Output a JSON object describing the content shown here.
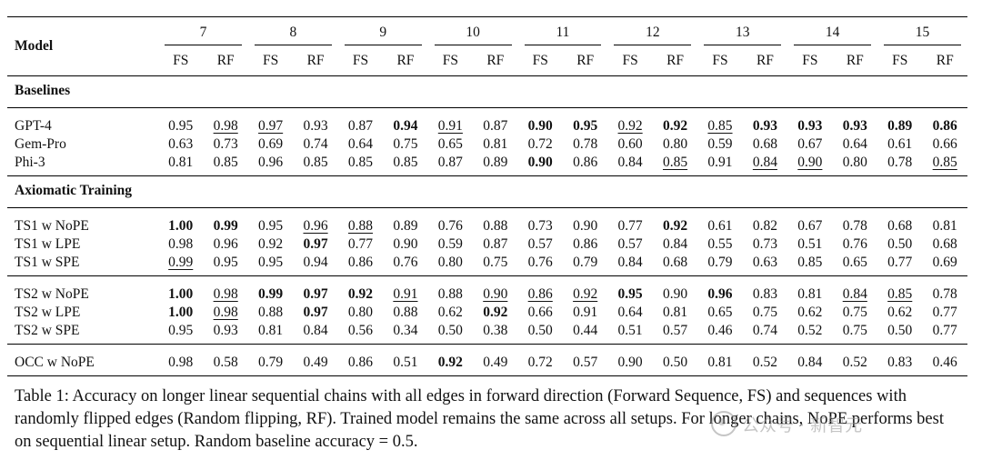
{
  "table": {
    "model_header": "Model",
    "lengths": [
      "7",
      "8",
      "9",
      "10",
      "11",
      "12",
      "13",
      "14",
      "15"
    ],
    "sub_headers": [
      "FS",
      "RF"
    ],
    "sections": [
      {
        "title": "Baselines",
        "rows": [
          {
            "model": "GPT-4",
            "values": [
              {
                "text": "0.95"
              },
              {
                "text": "0.98",
                "underline": true
              },
              {
                "text": "0.97",
                "underline": true
              },
              {
                "text": "0.93"
              },
              {
                "text": "0.87"
              },
              {
                "text": "0.94",
                "bold": true
              },
              {
                "text": "0.91",
                "underline": true
              },
              {
                "text": "0.87"
              },
              {
                "text": "0.90",
                "bold": true
              },
              {
                "text": "0.95",
                "bold": true
              },
              {
                "text": "0.92",
                "underline": true
              },
              {
                "text": "0.92",
                "bold": true
              },
              {
                "text": "0.85",
                "underline": true
              },
              {
                "text": "0.93",
                "bold": true
              },
              {
                "text": "0.93",
                "bold": true
              },
              {
                "text": "0.93",
                "bold": true
              },
              {
                "text": "0.89",
                "bold": true
              },
              {
                "text": "0.86",
                "bold": true
              }
            ]
          },
          {
            "model": "Gem-Pro",
            "values": [
              {
                "text": "0.63"
              },
              {
                "text": "0.73"
              },
              {
                "text": "0.69"
              },
              {
                "text": "0.74"
              },
              {
                "text": "0.64"
              },
              {
                "text": "0.75"
              },
              {
                "text": "0.65"
              },
              {
                "text": "0.81"
              },
              {
                "text": "0.72"
              },
              {
                "text": "0.78"
              },
              {
                "text": "0.60"
              },
              {
                "text": "0.80"
              },
              {
                "text": "0.59"
              },
              {
                "text": "0.68"
              },
              {
                "text": "0.67"
              },
              {
                "text": "0.64"
              },
              {
                "text": "0.61"
              },
              {
                "text": "0.66"
              }
            ]
          },
          {
            "model": "Phi-3",
            "values": [
              {
                "text": "0.81"
              },
              {
                "text": "0.85"
              },
              {
                "text": "0.96"
              },
              {
                "text": "0.85"
              },
              {
                "text": "0.85"
              },
              {
                "text": "0.85"
              },
              {
                "text": "0.87"
              },
              {
                "text": "0.89"
              },
              {
                "text": "0.90",
                "bold": true
              },
              {
                "text": "0.86"
              },
              {
                "text": "0.84"
              },
              {
                "text": "0.85",
                "underline": true
              },
              {
                "text": "0.91"
              },
              {
                "text": "0.84",
                "underline": true
              },
              {
                "text": "0.90",
                "underline": true
              },
              {
                "text": "0.80"
              },
              {
                "text": "0.78"
              },
              {
                "text": "0.85",
                "underline": true
              }
            ]
          }
        ]
      },
      {
        "title": "Axiomatic Training",
        "groups": [
          [
            {
              "model": "TS1 w NoPE",
              "values": [
                {
                  "text": "1.00",
                  "bold": true
                },
                {
                  "text": "0.99",
                  "bold": true
                },
                {
                  "text": "0.95"
                },
                {
                  "text": "0.96",
                  "underline": true
                },
                {
                  "text": "0.88",
                  "underline": true
                },
                {
                  "text": "0.89"
                },
                {
                  "text": "0.76"
                },
                {
                  "text": "0.88"
                },
                {
                  "text": "0.73"
                },
                {
                  "text": "0.90"
                },
                {
                  "text": "0.77"
                },
                {
                  "text": "0.92",
                  "bold": true
                },
                {
                  "text": "0.61"
                },
                {
                  "text": "0.82"
                },
                {
                  "text": "0.67"
                },
                {
                  "text": "0.78"
                },
                {
                  "text": "0.68"
                },
                {
                  "text": "0.81"
                }
              ]
            },
            {
              "model": "TS1 w LPE",
              "values": [
                {
                  "text": "0.98"
                },
                {
                  "text": "0.96"
                },
                {
                  "text": "0.92"
                },
                {
                  "text": "0.97",
                  "bold": true
                },
                {
                  "text": "0.77"
                },
                {
                  "text": "0.90"
                },
                {
                  "text": "0.59"
                },
                {
                  "text": "0.87"
                },
                {
                  "text": "0.57"
                },
                {
                  "text": "0.86"
                },
                {
                  "text": "0.57"
                },
                {
                  "text": "0.84"
                },
                {
                  "text": "0.55"
                },
                {
                  "text": "0.73"
                },
                {
                  "text": "0.51"
                },
                {
                  "text": "0.76"
                },
                {
                  "text": "0.50"
                },
                {
                  "text": "0.68"
                }
              ]
            },
            {
              "model": "TS1 w SPE",
              "values": [
                {
                  "text": "0.99",
                  "underline": true
                },
                {
                  "text": "0.95"
                },
                {
                  "text": "0.95"
                },
                {
                  "text": "0.94"
                },
                {
                  "text": "0.86"
                },
                {
                  "text": "0.76"
                },
                {
                  "text": "0.80"
                },
                {
                  "text": "0.75"
                },
                {
                  "text": "0.76"
                },
                {
                  "text": "0.79"
                },
                {
                  "text": "0.84"
                },
                {
                  "text": "0.68"
                },
                {
                  "text": "0.79"
                },
                {
                  "text": "0.63"
                },
                {
                  "text": "0.85"
                },
                {
                  "text": "0.65"
                },
                {
                  "text": "0.77"
                },
                {
                  "text": "0.69"
                }
              ]
            }
          ],
          [
            {
              "model": "TS2 w NoPE",
              "values": [
                {
                  "text": "1.00",
                  "bold": true
                },
                {
                  "text": "0.98",
                  "underline": true
                },
                {
                  "text": "0.99",
                  "bold": true
                },
                {
                  "text": "0.97",
                  "bold": true
                },
                {
                  "text": "0.92",
                  "bold": true
                },
                {
                  "text": "0.91",
                  "underline": true
                },
                {
                  "text": "0.88"
                },
                {
                  "text": "0.90",
                  "underline": true
                },
                {
                  "text": "0.86",
                  "underline": true
                },
                {
                  "text": "0.92",
                  "underline": true
                },
                {
                  "text": "0.95",
                  "bold": true
                },
                {
                  "text": "0.90"
                },
                {
                  "text": "0.96",
                  "bold": true
                },
                {
                  "text": "0.83"
                },
                {
                  "text": "0.81"
                },
                {
                  "text": "0.84",
                  "underline": true
                },
                {
                  "text": "0.85",
                  "underline": true
                },
                {
                  "text": "0.78"
                }
              ]
            },
            {
              "model": "TS2 w LPE",
              "values": [
                {
                  "text": "1.00",
                  "bold": true
                },
                {
                  "text": "0.98",
                  "underline": true
                },
                {
                  "text": "0.88"
                },
                {
                  "text": "0.97",
                  "bold": true
                },
                {
                  "text": "0.80"
                },
                {
                  "text": "0.88"
                },
                {
                  "text": "0.62"
                },
                {
                  "text": "0.92",
                  "bold": true
                },
                {
                  "text": "0.66"
                },
                {
                  "text": "0.91"
                },
                {
                  "text": "0.64"
                },
                {
                  "text": "0.81"
                },
                {
                  "text": "0.65"
                },
                {
                  "text": "0.75"
                },
                {
                  "text": "0.62"
                },
                {
                  "text": "0.75"
                },
                {
                  "text": "0.62"
                },
                {
                  "text": "0.77"
                }
              ]
            },
            {
              "model": "TS2 w SPE",
              "values": [
                {
                  "text": "0.95"
                },
                {
                  "text": "0.93"
                },
                {
                  "text": "0.81"
                },
                {
                  "text": "0.84"
                },
                {
                  "text": "0.56"
                },
                {
                  "text": "0.34"
                },
                {
                  "text": "0.50"
                },
                {
                  "text": "0.38"
                },
                {
                  "text": "0.50"
                },
                {
                  "text": "0.44"
                },
                {
                  "text": "0.51"
                },
                {
                  "text": "0.57"
                },
                {
                  "text": "0.46"
                },
                {
                  "text": "0.74"
                },
                {
                  "text": "0.52"
                },
                {
                  "text": "0.75"
                },
                {
                  "text": "0.50"
                },
                {
                  "text": "0.77"
                }
              ]
            }
          ]
        ]
      }
    ],
    "occ_row": {
      "model": "OCC w NoPE",
      "values": [
        {
          "text": "0.98"
        },
        {
          "text": "0.58"
        },
        {
          "text": "0.79"
        },
        {
          "text": "0.49"
        },
        {
          "text": "0.86"
        },
        {
          "text": "0.51"
        },
        {
          "text": "0.92",
          "bold": true
        },
        {
          "text": "0.49"
        },
        {
          "text": "0.72"
        },
        {
          "text": "0.57"
        },
        {
          "text": "0.90"
        },
        {
          "text": "0.50"
        },
        {
          "text": "0.81"
        },
        {
          "text": "0.52"
        },
        {
          "text": "0.84"
        },
        {
          "text": "0.52"
        },
        {
          "text": "0.83"
        },
        {
          "text": "0.46"
        }
      ]
    }
  },
  "caption": {
    "label": "Table 1:",
    "text": "Accuracy on longer linear sequential chains with all edges in forward direction (Forward Sequence, FS) and sequences with randomly flipped edges (Random flipping, RF). Trained model remains the same across all setups. For longer chains, NoPE performs best on sequential linear setup. Random baseline accuracy = 0.5."
  },
  "watermark": {
    "text": "公众号 · 新智元",
    "icon": "wechat-icon",
    "color": "#969696"
  }
}
